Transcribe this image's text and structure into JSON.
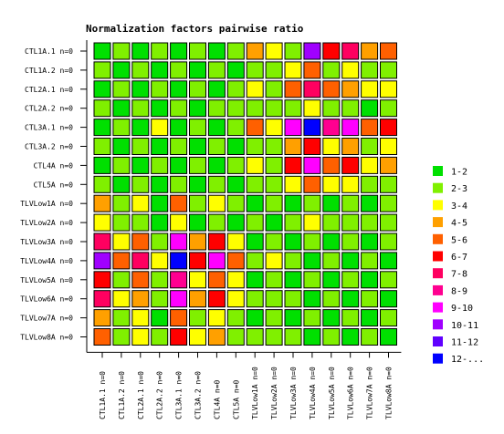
{
  "chart_data": {
    "type": "heatmap",
    "title": "Normalization factors pairwise ratio",
    "row_labels": [
      "CTL1A.1 n=0",
      "CTL1A.2 n=0",
      "CTL2A.1 n=0",
      "CTL2A.2 n=0",
      "CTL3A.1 n=0",
      "CTL3A.2 n=0",
      "CTL4A n=0",
      "CTL5A n=0",
      "TLVLow1A n=0",
      "TLVLow2A n=0",
      "TLVLow3A n=0",
      "TLVLow4A n=0",
      "TLVLow5A n=0",
      "TLVLow6A n=0",
      "TLVLow7A n=0",
      "TLVLow8A n=0"
    ],
    "col_labels": [
      "CTL1A.1 n=0",
      "CTL1A.2 n=0",
      "CTL2A.1 n=0",
      "CTL2A.2 n=0",
      "CTL3A.1 n=0",
      "CTL3A.2 n=0",
      "CTL4A n=0",
      "CTL5A n=0",
      "TLVLow1A n=0",
      "TLVLow2A n=0",
      "TLVLow3A n=0",
      "TLVLow4A n=0",
      "TLVLow5A n=0",
      "TLVLow6A n=0",
      "TLVLow7A n=0",
      "TLVLow8A n=0"
    ],
    "legend": [
      {
        "label": "1-2",
        "color": "#00e000"
      },
      {
        "label": "2-3",
        "color": "#80f000"
      },
      {
        "label": "3-4",
        "color": "#ffff00"
      },
      {
        "label": "4-5",
        "color": "#ffa000"
      },
      {
        "label": "5-6",
        "color": "#ff6000"
      },
      {
        "label": "6-7",
        "color": "#ff0000"
      },
      {
        "label": "7-8",
        "color": "#ff0060"
      },
      {
        "label": "8-9",
        "color": "#ff0090"
      },
      {
        "label": "9-10",
        "color": "#ff00ff"
      },
      {
        "label": "10-11",
        "color": "#a000ff"
      },
      {
        "label": "11-12",
        "color": "#6000ff"
      },
      {
        "label": "12-...",
        "color": "#0000ff"
      }
    ],
    "matrix": [
      [
        0,
        1,
        0,
        1,
        0,
        1,
        0,
        1,
        3,
        2,
        1,
        9,
        5,
        6,
        3,
        4
      ],
      [
        1,
        0,
        1,
        0,
        1,
        0,
        1,
        0,
        1,
        1,
        2,
        4,
        1,
        2,
        1,
        1
      ],
      [
        0,
        1,
        0,
        1,
        0,
        1,
        0,
        1,
        2,
        1,
        4,
        6,
        4,
        3,
        2,
        2
      ],
      [
        1,
        0,
        1,
        0,
        1,
        0,
        1,
        1,
        1,
        1,
        1,
        2,
        1,
        1,
        0,
        1
      ],
      [
        0,
        1,
        0,
        2,
        0,
        1,
        0,
        1,
        4,
        2,
        8,
        11,
        7,
        8,
        4,
        5
      ],
      [
        1,
        0,
        1,
        0,
        1,
        0,
        1,
        0,
        1,
        1,
        3,
        5,
        2,
        3,
        1,
        2
      ],
      [
        0,
        1,
        0,
        1,
        0,
        1,
        0,
        1,
        2,
        1,
        5,
        8,
        4,
        5,
        2,
        3
      ],
      [
        1,
        0,
        1,
        0,
        1,
        0,
        1,
        0,
        1,
        1,
        2,
        4,
        2,
        2,
        1,
        1
      ],
      [
        3,
        1,
        2,
        0,
        4,
        1,
        2,
        1,
        0,
        1,
        0,
        1,
        0,
        1,
        0,
        1
      ],
      [
        2,
        1,
        1,
        0,
        2,
        0,
        1,
        0,
        1,
        0,
        1,
        2,
        1,
        1,
        1,
        1
      ],
      [
        6,
        2,
        4,
        1,
        8,
        3,
        5,
        2,
        0,
        1,
        0,
        1,
        0,
        1,
        0,
        1
      ],
      [
        9,
        4,
        6,
        2,
        11,
        5,
        8,
        4,
        1,
        2,
        1,
        0,
        1,
        0,
        1,
        0
      ],
      [
        5,
        1,
        4,
        1,
        7,
        2,
        4,
        2,
        0,
        1,
        0,
        1,
        0,
        1,
        0,
        1
      ],
      [
        6,
        2,
        3,
        1,
        8,
        3,
        5,
        2,
        1,
        1,
        1,
        0,
        1,
        0,
        1,
        0
      ],
      [
        3,
        1,
        2,
        0,
        4,
        1,
        2,
        1,
        0,
        1,
        0,
        1,
        0,
        1,
        0,
        1
      ],
      [
        4,
        1,
        2,
        1,
        5,
        2,
        3,
        1,
        1,
        1,
        1,
        0,
        1,
        0,
        1,
        0
      ]
    ]
  }
}
